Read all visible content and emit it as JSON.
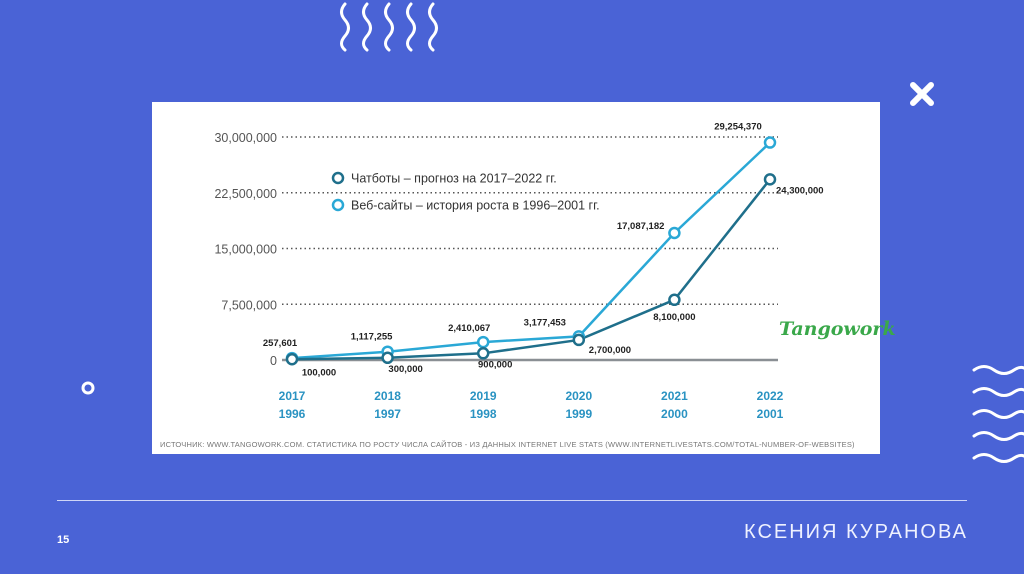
{
  "slide": {
    "number": "15",
    "author": "КСЕНИЯ КУРАНОВА",
    "logo_text": "Tangowork",
    "source_note": "ИСТОЧНИК: WWW.TANGOWORK.COM. СТАТИСТИКА ПО РОСТУ ЧИСЛА САЙТОВ - ИЗ ДАННЫХ INTERNET LIVE STATS (WWW.INTERNETLIVESTATS.COM/TOTAL-NUMBER-OF-WEBSITES)",
    "colors": {
      "background": "#4a63d6",
      "card": "#ffffff",
      "dark_series": "#1f6f8b",
      "light_series": "#2aa8d6",
      "tick_year": "#2a93c2"
    }
  },
  "chart_data": {
    "type": "line",
    "categories": [
      "2017",
      "2018",
      "2019",
      "2020",
      "2021",
      "2022"
    ],
    "secondary_categories": [
      "1996",
      "1997",
      "1998",
      "1999",
      "2000",
      "2001"
    ],
    "ylim": [
      0,
      30000000
    ],
    "y_ticks": [
      0,
      7500000,
      15000000,
      22500000,
      30000000
    ],
    "y_tick_labels": [
      "0",
      "7,500,000",
      "15,000,000",
      "22,500,000",
      "30,000,000"
    ],
    "grid": "dotted-horizontal",
    "legend_position": "top-left",
    "series": [
      {
        "name": "Чатботы – прогноз на 2017–2022 гг.",
        "values": [
          100000,
          300000,
          900000,
          2700000,
          8100000,
          24300000
        ],
        "labels": [
          "100,000",
          "300,000",
          "900,000",
          "2,700,000",
          "8,100,000",
          "24,300,000"
        ],
        "color": "#1f6f8b"
      },
      {
        "name": "Веб-сайты – история роста в 1996–2001 гг.",
        "values": [
          257601,
          1117255,
          2410067,
          3177453,
          17087182,
          29254370
        ],
        "labels": [
          "257,601",
          "1,117,255",
          "2,410,067",
          "3,177,453",
          "17,087,182",
          "29,254,370"
        ],
        "color": "#2aa8d6"
      }
    ]
  }
}
